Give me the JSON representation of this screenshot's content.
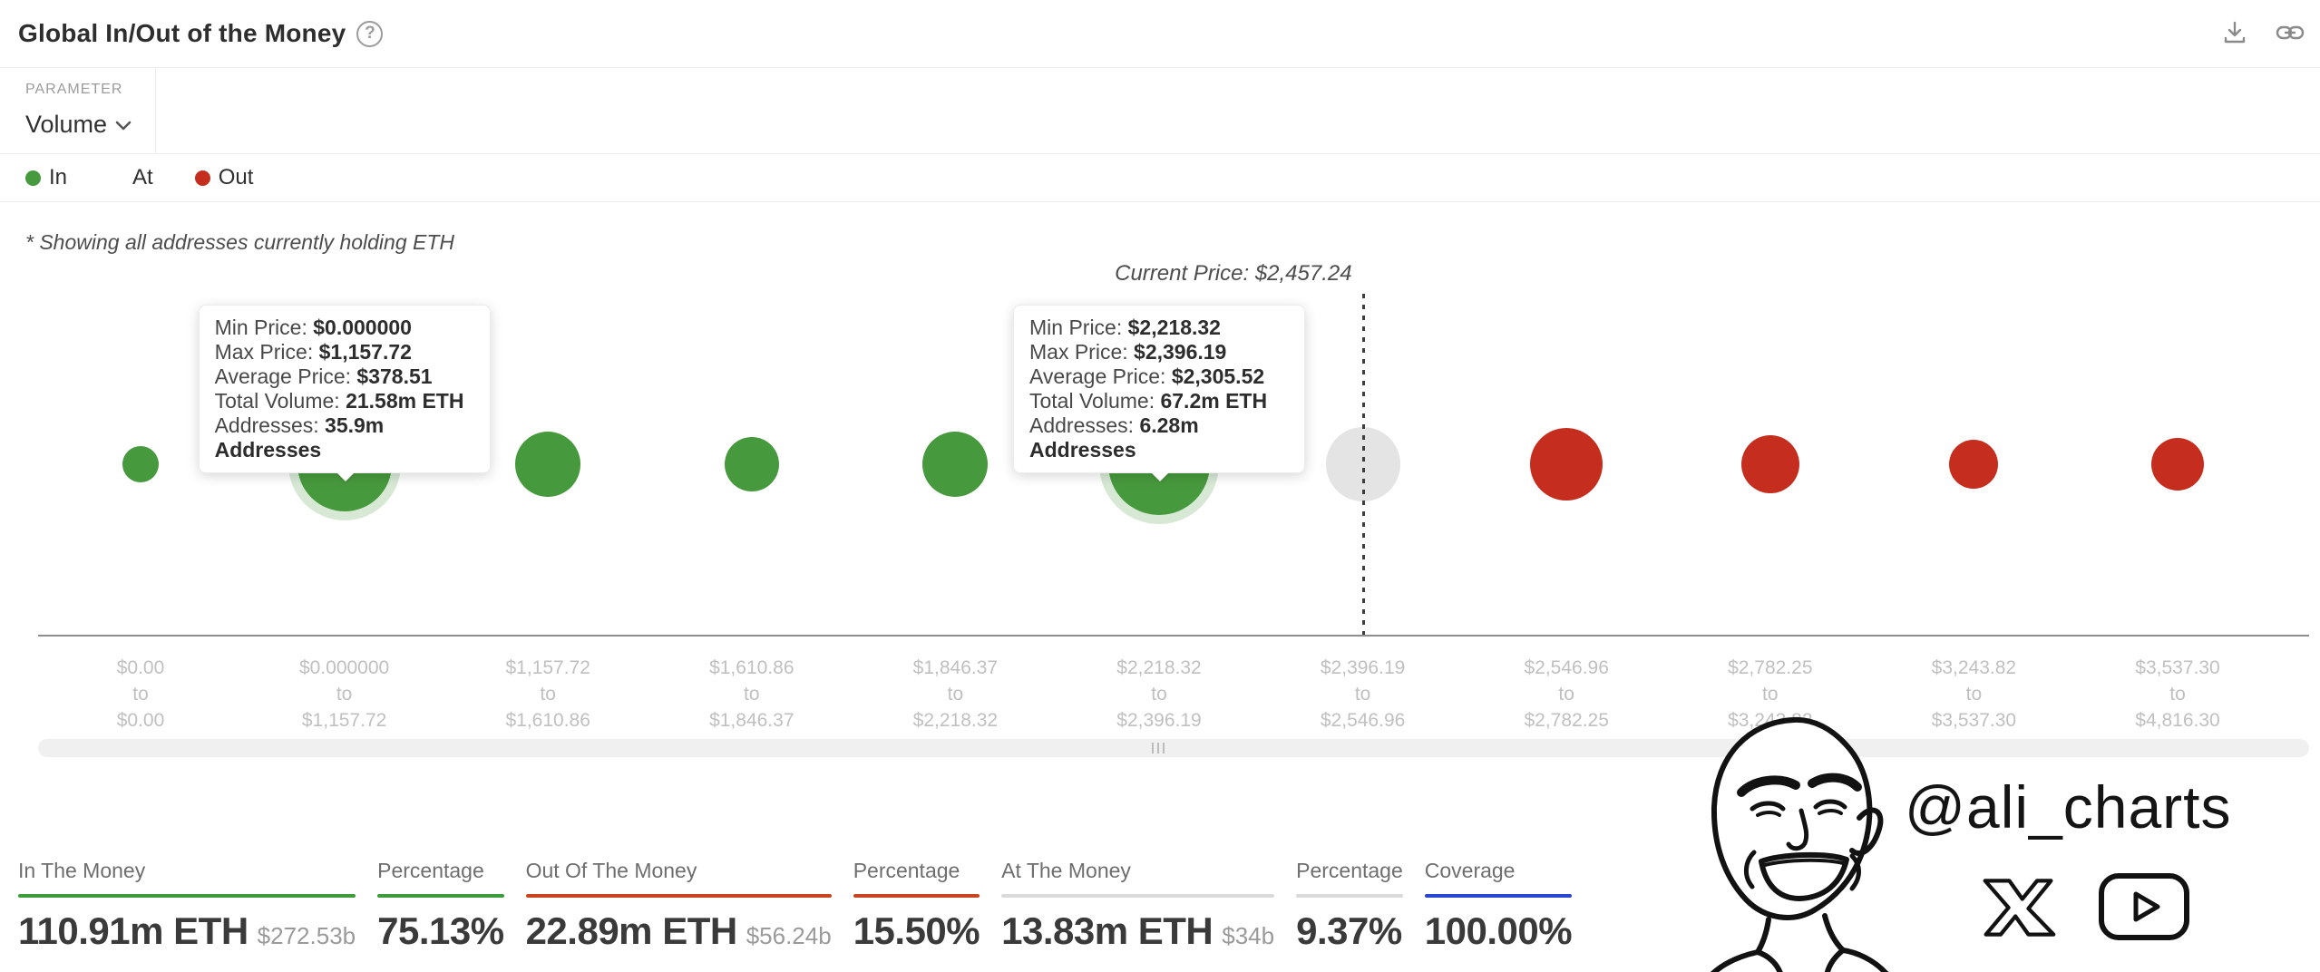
{
  "header": {
    "title": "Global In/Out of the Money",
    "help_icon": "?",
    "actions": [
      "download-icon",
      "copy-link-icon"
    ]
  },
  "controls": {
    "parameter_label": "PARAMETER",
    "parameter_value": "Volume"
  },
  "legend": {
    "items": [
      {
        "label": "In",
        "color": "#47993d"
      },
      {
        "label": "At",
        "color": "transparent"
      },
      {
        "label": "Out",
        "color": "#c52e1e"
      }
    ]
  },
  "note": "* Showing all addresses currently holding ETH",
  "current_price": {
    "label": "Current Price: $2,457.24",
    "value": "$2,457.24"
  },
  "chart_data": {
    "type": "bubble",
    "title": "Global In/Out of the Money",
    "x_axis_separator": "to",
    "grid": false,
    "legend_position": "top-left",
    "colors": {
      "in": "#47993d",
      "at": "#e4e4e4",
      "out": "#c52e1e",
      "halo": "rgba(72,153,62,.22)"
    },
    "current_price_marker_index": 6,
    "x_axis_ranges": [
      {
        "from": "$0.00",
        "to": "$0.00"
      },
      {
        "from": "$0.000000",
        "to": "$1,157.72"
      },
      {
        "from": "$1,157.72",
        "to": "$1,610.86"
      },
      {
        "from": "$1,610.86",
        "to": "$1,846.37"
      },
      {
        "from": "$1,846.37",
        "to": "$2,218.32"
      },
      {
        "from": "$2,218.32",
        "to": "$2,396.19"
      },
      {
        "from": "$2,396.19",
        "to": "$2,546.96"
      },
      {
        "from": "$2,546.96",
        "to": "$2,782.25"
      },
      {
        "from": "$2,782.25",
        "to": "$3,243.82"
      },
      {
        "from": "$3,243.82",
        "to": "$3,537.30"
      },
      {
        "from": "$3,537.30",
        "to": "$4,816.30"
      }
    ],
    "bubbles": [
      {
        "status": "in",
        "radius_px": 20,
        "highlighted": false
      },
      {
        "status": "in",
        "radius_px": 52,
        "highlighted": true
      },
      {
        "status": "in",
        "radius_px": 36,
        "highlighted": false
      },
      {
        "status": "in",
        "radius_px": 30,
        "highlighted": false
      },
      {
        "status": "in",
        "radius_px": 36,
        "highlighted": false
      },
      {
        "status": "in",
        "radius_px": 56,
        "highlighted": true
      },
      {
        "status": "at",
        "radius_px": 41,
        "highlighted": false
      },
      {
        "status": "out",
        "radius_px": 40,
        "highlighted": false
      },
      {
        "status": "out",
        "radius_px": 32,
        "highlighted": false
      },
      {
        "status": "out",
        "radius_px": 27,
        "highlighted": false
      },
      {
        "status": "out",
        "radius_px": 29,
        "highlighted": false
      }
    ]
  },
  "tooltips": [
    {
      "anchor_index": 1,
      "rows": [
        {
          "label": "Min Price:",
          "value": "$0.000000"
        },
        {
          "label": "Max Price:",
          "value": "$1,157.72"
        },
        {
          "label": "Average Price:",
          "value": "$378.51"
        },
        {
          "label": "Total Volume:",
          "value": "21.58m ETH"
        },
        {
          "label": "Addresses:",
          "value": "35.9m Addresses"
        }
      ]
    },
    {
      "anchor_index": 5,
      "rows": [
        {
          "label": "Min Price:",
          "value": "$2,218.32"
        },
        {
          "label": "Max Price:",
          "value": "$2,396.19"
        },
        {
          "label": "Average Price:",
          "value": "$2,305.52"
        },
        {
          "label": "Total Volume:",
          "value": "67.2m ETH"
        },
        {
          "label": "Addresses:",
          "value": "6.28m Addresses"
        }
      ]
    }
  ],
  "stats": [
    {
      "label": "In The Money",
      "value": "110.91m ETH",
      "secondary": "$272.53b",
      "underline_color": "#3f9c3c"
    },
    {
      "label": "Percentage",
      "value": "75.13%",
      "secondary": "",
      "underline_color": "#3f9c3c"
    },
    {
      "label": "Out Of The Money",
      "value": "22.89m ETH",
      "secondary": "$56.24b",
      "underline_color": "#c9451f"
    },
    {
      "label": "Percentage",
      "value": "15.50%",
      "secondary": "",
      "underline_color": "#c9451f"
    },
    {
      "label": "At The Money",
      "value": "13.83m ETH",
      "secondary": "$34b",
      "underline_color": "#dadada"
    },
    {
      "label": "Percentage",
      "value": "9.37%",
      "secondary": "",
      "underline_color": "#dadada"
    },
    {
      "label": "Coverage",
      "value": "100.00%",
      "secondary": "",
      "underline_color": "#2a46d4"
    }
  ],
  "watermark": {
    "handle": "@ali_charts"
  }
}
